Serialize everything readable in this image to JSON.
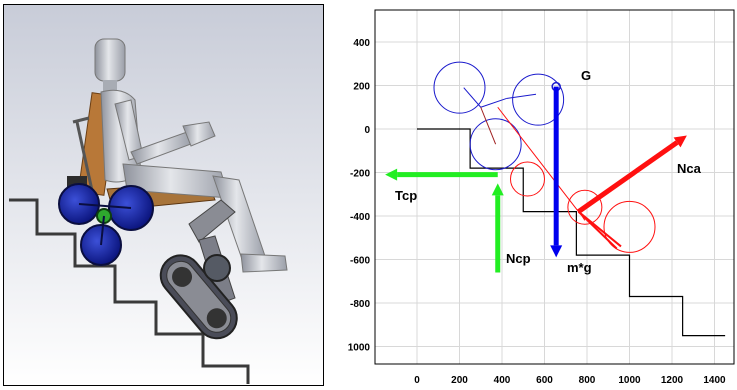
{
  "left_figure": {
    "colors": {
      "frame": "#000000",
      "stairs": "#3a3a3a",
      "wheel": "#1828a8",
      "body": "#b8bcc4",
      "seat": "#b87838",
      "track": "#4a4c58",
      "background_top": "#c8ccd8",
      "background_bottom": "#ffffff"
    }
  },
  "plot": {
    "x_ticks": [
      "0",
      "200",
      "400",
      "600",
      "800",
      "1000",
      "1200",
      "1400"
    ],
    "y_ticks": [
      "400",
      "200",
      "0",
      "-200",
      "-400",
      "-600",
      "-800",
      "1000"
    ],
    "xlim": [
      -200,
      1450
    ],
    "ylim": [
      -1080,
      480
    ],
    "labels": {
      "G": "G",
      "Tcp": "Tcp",
      "Ncp": "Ncp",
      "mg": "m*g",
      "Nca": "Nca"
    },
    "colors": {
      "circles": "#1a1acc",
      "stairs": "#000000",
      "blue_arrow": "#0000ee",
      "green_arrow": "#22ee22",
      "red": "#ff1010",
      "grid": "#d8d8d8"
    }
  }
}
